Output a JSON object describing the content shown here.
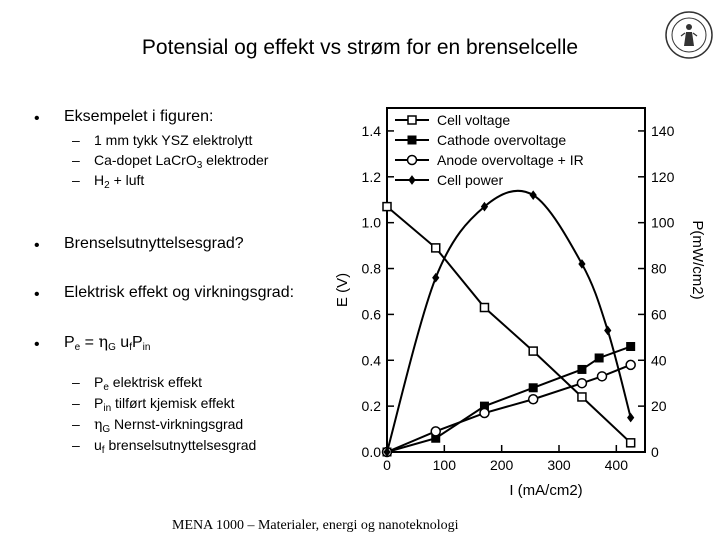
{
  "slide": {
    "title": "Potensial og effekt vs strøm for en brenselcelle",
    "footer": "MENA 1000 – Materialer, energi og nanoteknologi"
  },
  "bullets": [
    {
      "text": "Eksempelet i figuren:",
      "subs": [
        {
          "text": "1 mm tykk YSZ elektrolytt"
        },
        {
          "prefix": "Ca-dopet La",
          "main": "Cr",
          "sub1": "",
          "main2": "O",
          "sub2": "3",
          "suffix": " elektroder"
        },
        {
          "prefix": "H",
          "sub": "2",
          "suffix": " + luft"
        }
      ]
    },
    {
      "text": "Brenselsutnyttelsesgrad?"
    },
    {
      "text": "Elektrisk effekt og virkningsgrad:"
    },
    {
      "formula": {
        "p": "P",
        "p_sub": "e",
        "eq": " = ",
        "eta": "η",
        "eta_sub": "G",
        "u": " u",
        "u_sub": "f",
        "p2": "P",
        "p2_sub": "in"
      },
      "subs": [
        {
          "sym": "P",
          "sym_sub": "e",
          "text": " elektrisk effekt"
        },
        {
          "sym": "P",
          "sym_sub": "in",
          "text": " tilført kjemisk effekt"
        },
        {
          "sym": "η",
          "sym_sub": "G",
          "text": " Nernst-virkningsgrad"
        },
        {
          "sym": "u",
          "sym_sub": "f",
          "text": " brenselsutnyttelsesgrad"
        }
      ]
    }
  ],
  "chart_data": {
    "type": "line",
    "xlabel": "I (mA/cm2)",
    "ylabel_left": "E (V)",
    "ylabel_right": "P(mW/cm2)",
    "xlim": [
      0,
      450
    ],
    "ylim_left": [
      0,
      1.5
    ],
    "ylim_right": [
      0,
      150
    ],
    "x_ticks": [
      0,
      100,
      200,
      300,
      400
    ],
    "y_left_ticks": [
      0.0,
      0.2,
      0.4,
      0.6,
      0.8,
      1.0,
      1.2,
      1.4
    ],
    "y_left_tick_labels": [
      "0.0",
      "0.2",
      "0.4",
      "0.6",
      "0.8",
      "1.0",
      "1.2",
      "1.4"
    ],
    "y_right_ticks": [
      0,
      20,
      40,
      60,
      80,
      100,
      120,
      140
    ],
    "grid": false,
    "legend_position": "top-left",
    "series": [
      {
        "name": "Cell voltage",
        "axis": "left",
        "marker": "square-open",
        "x": [
          0,
          85,
          170,
          255,
          340,
          425
        ],
        "y": [
          1.07,
          0.89,
          0.63,
          0.44,
          0.24,
          0.04
        ]
      },
      {
        "name": "Cathode overvoltage",
        "axis": "left",
        "marker": "square-filled",
        "x": [
          0,
          85,
          170,
          255,
          340,
          370,
          425
        ],
        "y": [
          0,
          0.06,
          0.2,
          0.28,
          0.36,
          0.41,
          0.46
        ]
      },
      {
        "name": "Anode overvoltage + IR",
        "axis": "left",
        "marker": "circle-open",
        "x": [
          0,
          85,
          170,
          255,
          340,
          375,
          425
        ],
        "y": [
          0,
          0.09,
          0.17,
          0.23,
          0.3,
          0.33,
          0.38
        ]
      },
      {
        "name": "Cell power",
        "axis": "right",
        "marker": "diamond-filled",
        "x": [
          0,
          85,
          170,
          255,
          340,
          385,
          425
        ],
        "y": [
          0,
          76,
          107,
          112,
          82,
          53,
          15
        ]
      }
    ]
  },
  "colors": {
    "text": "#000000",
    "background": "#ffffff",
    "chart_lines": "#000000"
  },
  "icons": {
    "seal": "university-seal-icon"
  }
}
